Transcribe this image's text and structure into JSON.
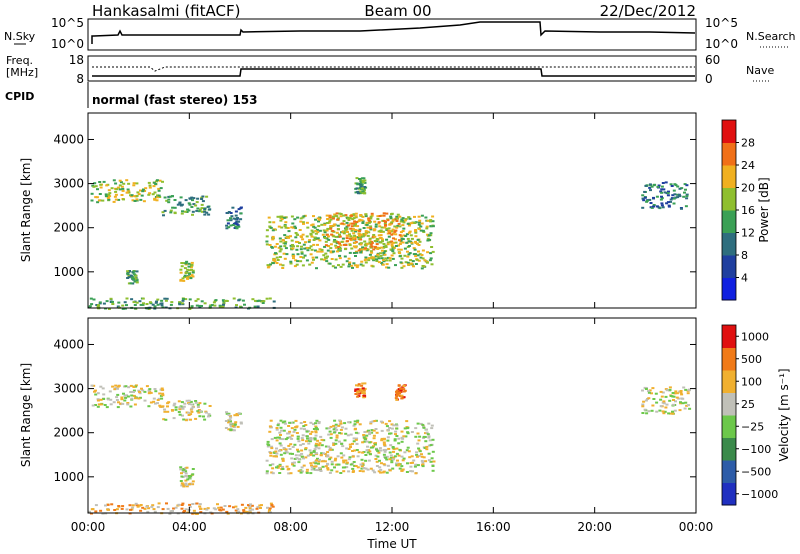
{
  "header": {
    "station": "Hankasalmi (fitACF)",
    "beam": "Beam 00",
    "date": "22/Dec/2012"
  },
  "noise_panel": {
    "left_label": "N.Sky",
    "right_label": "N.Search",
    "left_ticks": [
      "10^5",
      "10^0"
    ],
    "right_ticks": [
      "10^5",
      "10^0"
    ]
  },
  "freq_panel": {
    "left_label_1": "Freq.",
    "left_label_2": "[MHz]",
    "left_ticks": [
      "18",
      "8"
    ],
    "right_label": "Nave",
    "right_ticks": [
      "60",
      "0"
    ]
  },
  "cpid": {
    "label": "CPID",
    "value": "normal (fast stereo) 153"
  },
  "colors": {
    "power_scale": [
      "#1020e0",
      "#1f3f9f",
      "#2e6e7e",
      "#3aa055",
      "#8fbf2f",
      "#f0b020",
      "#f07018",
      "#e01010"
    ],
    "velocity_scale": [
      "#2030c0",
      "#2d5ca8",
      "#3a8a4a",
      "#6cc84a",
      "#c0c0b8",
      "#f0b030",
      "#f07a18",
      "#e01010"
    ]
  },
  "chart_data": [
    {
      "type": "heatmap",
      "name": "power",
      "ylabel": "Slant Range [km]",
      "yticks": [
        1000,
        2000,
        3000,
        4000
      ],
      "ylim": [
        180,
        4600
      ],
      "xlim": [
        0,
        24
      ],
      "colorbar_label": "Power [dB]",
      "colorbar_ticks": [
        "4",
        "8",
        "12",
        "16",
        "20",
        "24",
        "28"
      ],
      "regions": [
        {
          "t0": 0.1,
          "t1": 2.9,
          "r0": 2600,
          "r1": 3100,
          "level": 4
        },
        {
          "t0": 2.9,
          "t1": 4.8,
          "r0": 2300,
          "r1": 2750,
          "level": 3
        },
        {
          "t0": 5.4,
          "t1": 6.0,
          "r0": 2000,
          "r1": 2500,
          "level": 2
        },
        {
          "t0": 3.6,
          "t1": 4.1,
          "r0": 800,
          "r1": 1250,
          "level": 4
        },
        {
          "t0": 1.5,
          "t1": 1.9,
          "r0": 750,
          "r1": 1050,
          "level": 3
        },
        {
          "t0": 7.0,
          "t1": 13.6,
          "r0": 1100,
          "r1": 2300,
          "level": 4
        },
        {
          "t0": 9.3,
          "t1": 12.3,
          "r0": 1500,
          "r1": 2350,
          "level": 5
        },
        {
          "t0": 10.5,
          "t1": 10.9,
          "r0": 2800,
          "r1": 3150,
          "level": 3
        },
        {
          "t0": 21.8,
          "t1": 23.7,
          "r0": 2450,
          "r1": 3050,
          "level": 2
        },
        {
          "t0": 0.0,
          "t1": 7.3,
          "r0": 180,
          "r1": 420,
          "level": 3
        }
      ]
    },
    {
      "type": "heatmap",
      "name": "velocity",
      "ylabel": "Slant Range [km]",
      "yticks": [
        1000,
        2000,
        3000,
        4000
      ],
      "ylim": [
        180,
        4600
      ],
      "xlim": [
        0,
        24
      ],
      "xticks": [
        "00:00",
        "04:00",
        "08:00",
        "12:00",
        "16:00",
        "20:00",
        "00:00"
      ],
      "xlabel": "Time UT",
      "colorbar_label": "Velocity [m s⁻¹]",
      "colorbar_ticks": [
        "1000",
        "500",
        "100",
        "25",
        "−25",
        "−100",
        "−500",
        "−1000"
      ],
      "regions": [
        {
          "t0": 0.1,
          "t1": 2.9,
          "r0": 2600,
          "r1": 3100,
          "level": 4
        },
        {
          "t0": 2.9,
          "t1": 4.8,
          "r0": 2300,
          "r1": 2750,
          "level": 4
        },
        {
          "t0": 5.4,
          "t1": 6.0,
          "r0": 2000,
          "r1": 2500,
          "level": 4
        },
        {
          "t0": 3.6,
          "t1": 4.1,
          "r0": 800,
          "r1": 1250,
          "level": 4
        },
        {
          "t0": 7.0,
          "t1": 13.6,
          "r0": 1100,
          "r1": 2300,
          "level": 4
        },
        {
          "t0": 10.5,
          "t1": 10.9,
          "r0": 2800,
          "r1": 3150,
          "level": 6
        },
        {
          "t0": 12.1,
          "t1": 12.5,
          "r0": 2750,
          "r1": 3100,
          "level": 6
        },
        {
          "t0": 21.8,
          "t1": 23.7,
          "r0": 2450,
          "r1": 3050,
          "level": 4
        },
        {
          "t0": 0.0,
          "t1": 7.3,
          "r0": 180,
          "r1": 420,
          "level": 5
        }
      ]
    }
  ]
}
